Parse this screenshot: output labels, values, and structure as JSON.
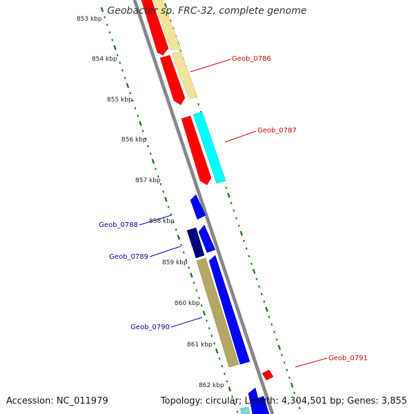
{
  "title": "Geobacter sp. FRC-32, complete genome",
  "footer": {
    "accession": "Accession: NC_011979",
    "topology": "Topology: circular; Length: 4,304,501 bp; Genes: 3,855"
  },
  "ruler": {
    "tick_labels": [
      "853 kbp",
      "854 kbp",
      "855 kbp",
      "856 kbp",
      "857 kbp",
      "858 kbp",
      "859 kbp",
      "860 kbp",
      "861 kbp",
      "862 kbp"
    ]
  },
  "colors": {
    "red_gene": "#ff0000",
    "yellow_gene": "#f2e39a",
    "cyan_gene": "#00ffff",
    "blue_gene": "#0000ff",
    "navy_gene": "#000080",
    "khaki_gene": "#b5a867",
    "backbone": "#888888",
    "tick_green": "#1a7a1a",
    "red_label": "#cc0000",
    "blue_label": "#0000aa"
  },
  "labels": [
    {
      "name": "Geob_0786",
      "color": "red"
    },
    {
      "name": "Geob_0787",
      "color": "red"
    },
    {
      "name": "Geob_0788",
      "color": "blue"
    },
    {
      "name": "Geob_0789",
      "color": "blue"
    },
    {
      "name": "Geob_0790",
      "color": "blue"
    },
    {
      "name": "Geob_0791",
      "color": "red"
    }
  ]
}
